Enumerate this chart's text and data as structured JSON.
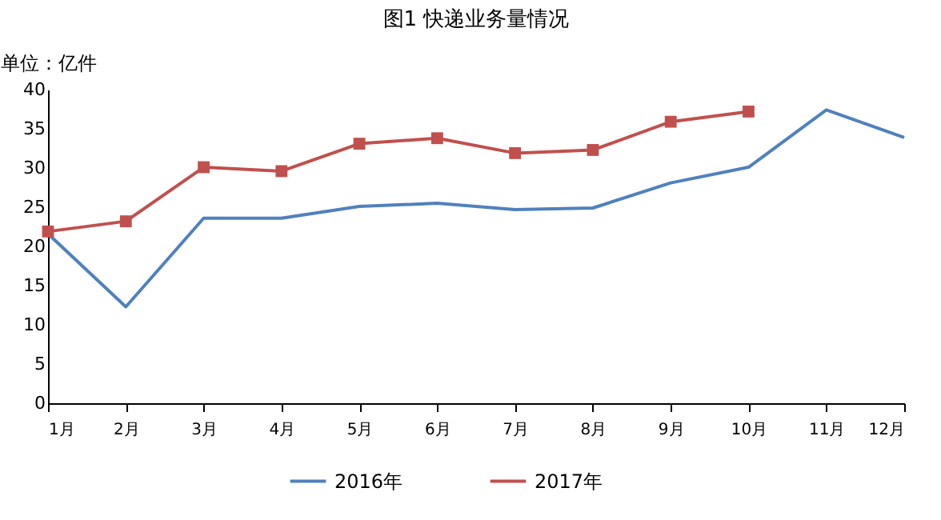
{
  "chart_data": {
    "type": "line",
    "title": "图1   快递业务量情况",
    "ylabel": "单位：亿件",
    "categories": [
      "1月",
      "2月",
      "3月",
      "4月",
      "5月",
      "6月",
      "7月",
      "8月",
      "9月",
      "10月",
      "11月",
      "12月"
    ],
    "series": [
      {
        "name": "2016年",
        "color": "#4f81bd",
        "marker": "none",
        "values": [
          21.6,
          12.3,
          23.6,
          23.6,
          25.1,
          25.5,
          24.7,
          24.9,
          28.1,
          30.1,
          37.4,
          33.9
        ]
      },
      {
        "name": "2017年",
        "color": "#c0504d",
        "marker": "square",
        "values": [
          21.9,
          23.2,
          30.1,
          29.6,
          33.1,
          33.8,
          31.9,
          32.3,
          35.9,
          37.2,
          null,
          null
        ]
      }
    ],
    "ylim": [
      0,
      40
    ],
    "yticks": [
      0,
      5,
      10,
      15,
      20,
      25,
      30,
      35,
      40
    ],
    "grid": false,
    "legend": "bottom"
  }
}
